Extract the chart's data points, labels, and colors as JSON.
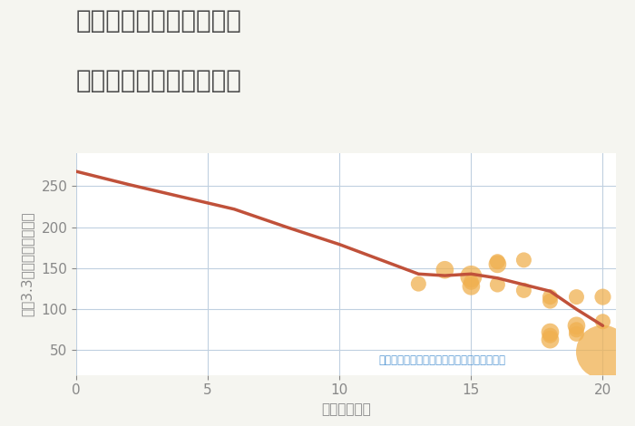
{
  "title_line1": "奈良県生駒市鹿ノ台西の",
  "title_line2": "駅距離別中古戸建て価格",
  "xlabel": "駅距離（分）",
  "ylabel": "坪（3.3㎡）単価（万円）",
  "background_color": "#f5f5f0",
  "plot_bg_color": "#ffffff",
  "line_color": "#c0513a",
  "line_points_x": [
    0,
    2,
    4,
    6,
    8,
    10,
    12,
    13,
    14,
    15,
    16,
    17,
    18,
    19,
    20
  ],
  "line_points_y": [
    268,
    252,
    237,
    222,
    200,
    179,
    155,
    143,
    141,
    143,
    138,
    130,
    122,
    100,
    80
  ],
  "scatter_x": [
    13,
    14,
    15,
    15,
    15,
    16,
    16,
    16,
    17,
    17,
    18,
    18,
    18,
    18,
    18,
    19,
    19,
    19,
    19,
    20,
    20,
    20
  ],
  "scatter_y": [
    131,
    148,
    140,
    133,
    128,
    158,
    155,
    130,
    123,
    160,
    63,
    68,
    72,
    110,
    115,
    70,
    75,
    80,
    115,
    48,
    85,
    115
  ],
  "scatter_size": [
    150,
    200,
    300,
    150,
    200,
    150,
    200,
    150,
    150,
    150,
    200,
    150,
    200,
    150,
    150,
    150,
    150,
    200,
    150,
    1800,
    150,
    170
  ],
  "scatter_color": "#f0b050",
  "scatter_alpha": 0.75,
  "annotation": "円の大きさは、取引のあった物件面積を示す",
  "annotation_color": "#5b9bd5",
  "xlim": [
    0,
    20.5
  ],
  "ylim": [
    20,
    290
  ],
  "xticks": [
    0,
    5,
    10,
    15,
    20
  ],
  "yticks": [
    50,
    100,
    150,
    200,
    250
  ],
  "grid_color": "#c0d0e0",
  "title_color": "#4a4a4a",
  "tick_color": "#888888",
  "label_color": "#888888",
  "title_fontsize": 20,
  "label_fontsize": 11,
  "tick_fontsize": 11
}
